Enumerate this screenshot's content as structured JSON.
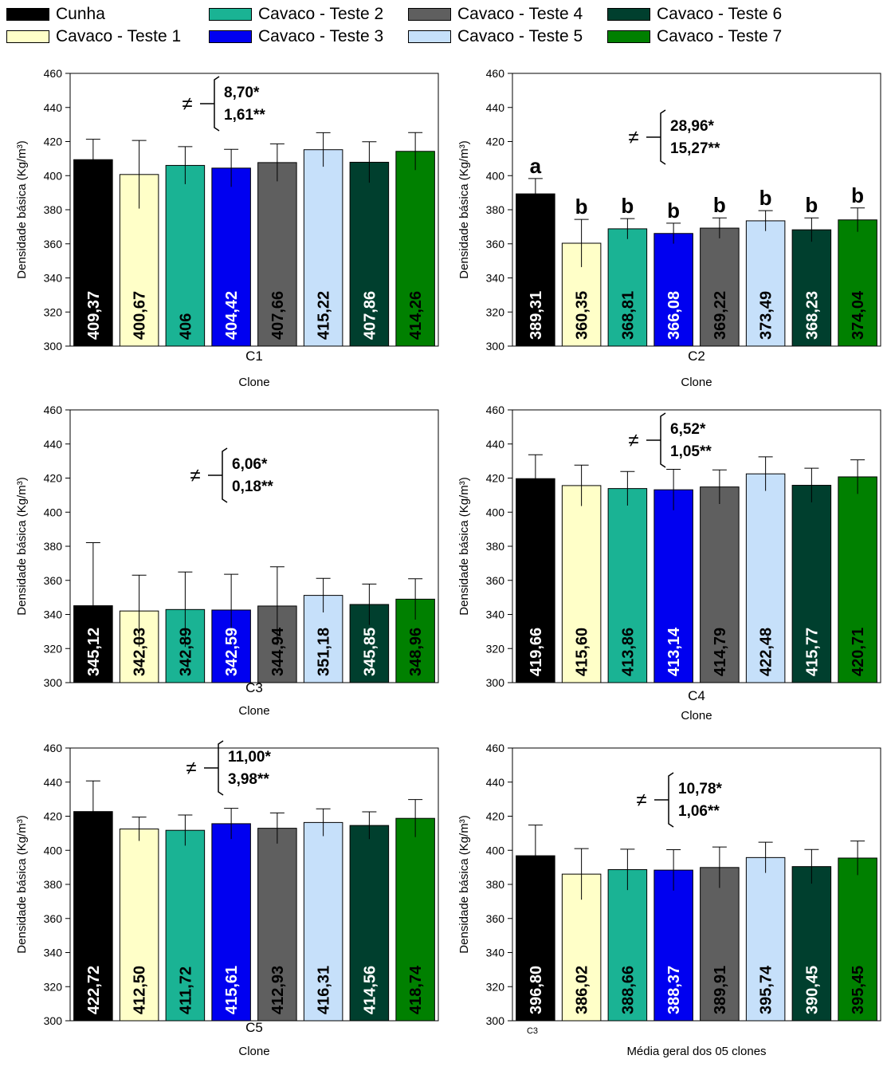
{
  "legend": {
    "items": [
      {
        "label": "Cunha",
        "color": "#000000"
      },
      {
        "label": "Cavaco - Teste 1",
        "color": "#FFFFC8"
      },
      {
        "label": "Cavaco - Teste 2",
        "color": "#1AB394"
      },
      {
        "label": "Cavaco - Teste 3",
        "color": "#0000F0"
      },
      {
        "label": "Cavaco - Teste 4",
        "color": "#5F5F5F"
      },
      {
        "label": "Cavaco - Teste 5",
        "color": "#C6E0FA"
      },
      {
        "label": "Cavaco - Teste 6",
        "color": "#003F2E"
      },
      {
        "label": "Cavaco - Teste 7",
        "color": "#008000"
      }
    ]
  },
  "bar_label_colors": [
    "#ffffff",
    "#000000",
    "#000000",
    "#ffffff",
    "#000000",
    "#000000",
    "#ffffff",
    "#000000"
  ],
  "chart_data": [
    {
      "type": "bar",
      "ylabel": "Densidade básica (Kg/m³)",
      "xlabel": "Clone",
      "category": "C1",
      "ylim": [
        300,
        460
      ],
      "yticks": [
        "300",
        "320",
        "340",
        "360",
        "380",
        "400",
        "420",
        "440",
        "460"
      ],
      "values": [
        409.37,
        400.67,
        406,
        404.42,
        407.66,
        415.22,
        407.86,
        414.26
      ],
      "value_labels": [
        "409,37",
        "400,67",
        "406",
        "404,42",
        "407,66",
        "415,22",
        "407,86",
        "414,26"
      ],
      "errors": [
        12,
        20,
        11,
        11,
        11,
        10,
        12,
        11
      ],
      "letters": [],
      "annotation": {
        "symbol": "≠",
        "line1": "8,70*",
        "line2": "1,61**"
      }
    },
    {
      "type": "bar",
      "ylabel": "Densidade básica (Kg/m³)",
      "xlabel": "Clone",
      "category": "C2",
      "ylim": [
        300,
        460
      ],
      "yticks": [
        "300",
        "320",
        "340",
        "360",
        "380",
        "400",
        "420",
        "440",
        "460"
      ],
      "values": [
        389.31,
        360.35,
        368.81,
        366.08,
        369.22,
        373.49,
        368.23,
        374.04
      ],
      "value_labels": [
        "389,31",
        "360,35",
        "368,81",
        "366,08",
        "369,22",
        "373,49",
        "368,23",
        "374,04"
      ],
      "errors": [
        9,
        14,
        6,
        6,
        6,
        6,
        7,
        7
      ],
      "letters": [
        "a",
        "b",
        "b",
        "b",
        "b",
        "b",
        "b",
        "b"
      ],
      "annotation": {
        "symbol": "≠",
        "line1": "28,96*",
        "line2": "15,27**"
      }
    },
    {
      "type": "bar",
      "ylabel": "Densidade básica (Kg/m³)",
      "xlabel": "Clone",
      "category": "C3",
      "ylim": [
        300,
        460
      ],
      "yticks": [
        "300",
        "320",
        "340",
        "360",
        "380",
        "400",
        "420",
        "440",
        "460"
      ],
      "values": [
        345.12,
        342.03,
        342.89,
        342.59,
        344.94,
        351.18,
        345.85,
        348.96
      ],
      "value_labels": [
        "345,12",
        "342,03",
        "342,89",
        "342,59",
        "344,94",
        "351,18",
        "345,85",
        "348,96"
      ],
      "errors": [
        37,
        21,
        22,
        21,
        23,
        10,
        12,
        12
      ],
      "letters": [],
      "annotation": {
        "symbol": "≠",
        "line1": "6,06*",
        "line2": "0,18**"
      }
    },
    {
      "type": "bar",
      "ylabel": "Densidade básica (Kg/m³)",
      "xlabel": "Clone",
      "category": "C4",
      "ylim": [
        300,
        460
      ],
      "yticks": [
        "300",
        "320",
        "340",
        "360",
        "380",
        "400",
        "420",
        "440",
        "460"
      ],
      "values": [
        419.66,
        415.6,
        413.86,
        413.14,
        414.79,
        422.48,
        415.77,
        420.71
      ],
      "value_labels": [
        "419,66",
        "415,60",
        "413,86",
        "413,14",
        "414,79",
        "422,48",
        "415,77",
        "420,71"
      ],
      "errors": [
        14,
        12,
        10,
        12,
        10,
        10,
        10,
        10
      ],
      "letters": [],
      "annotation": {
        "symbol": "≠",
        "line1": "6,52*",
        "line2": "1,05**"
      }
    },
    {
      "type": "bar",
      "ylabel": "Densidade básica (Kg/m³)",
      "xlabel": "Clone",
      "category": "C5",
      "ylim": [
        300,
        460
      ],
      "yticks": [
        "300",
        "320",
        "340",
        "360",
        "380",
        "400",
        "420",
        "440",
        "460"
      ],
      "values": [
        422.72,
        412.5,
        411.72,
        415.61,
        412.93,
        416.31,
        414.56,
        418.74
      ],
      "value_labels": [
        "422,72",
        "412,50",
        "411,72",
        "415,61",
        "412,93",
        "416,31",
        "414,56",
        "418,74"
      ],
      "errors": [
        18,
        7,
        9,
        9,
        9,
        8,
        8,
        11
      ],
      "letters": [],
      "annotation": {
        "symbol": "≠",
        "line1": "11,00*",
        "line2": "3,98**"
      }
    },
    {
      "type": "bar",
      "ylabel": "Densidade básica (Kg/m³)",
      "xlabel": "Média geral dos 05 clones",
      "category": "C3",
      "ylim": [
        300,
        460
      ],
      "yticks": [
        "300",
        "320",
        "340",
        "360",
        "380",
        "400",
        "420",
        "440",
        "460"
      ],
      "values": [
        396.8,
        386.02,
        388.66,
        388.37,
        389.91,
        395.74,
        390.45,
        395.45
      ],
      "value_labels": [
        "396,80",
        "386,02",
        "388,66",
        "388,37",
        "389,91",
        "395,74",
        "390,45",
        "395,45"
      ],
      "errors": [
        18,
        15,
        12,
        12,
        12,
        9,
        10,
        10
      ],
      "letters": [],
      "annotation": {
        "symbol": "≠",
        "line1": "10,78*",
        "line2": "1,06**"
      }
    }
  ]
}
